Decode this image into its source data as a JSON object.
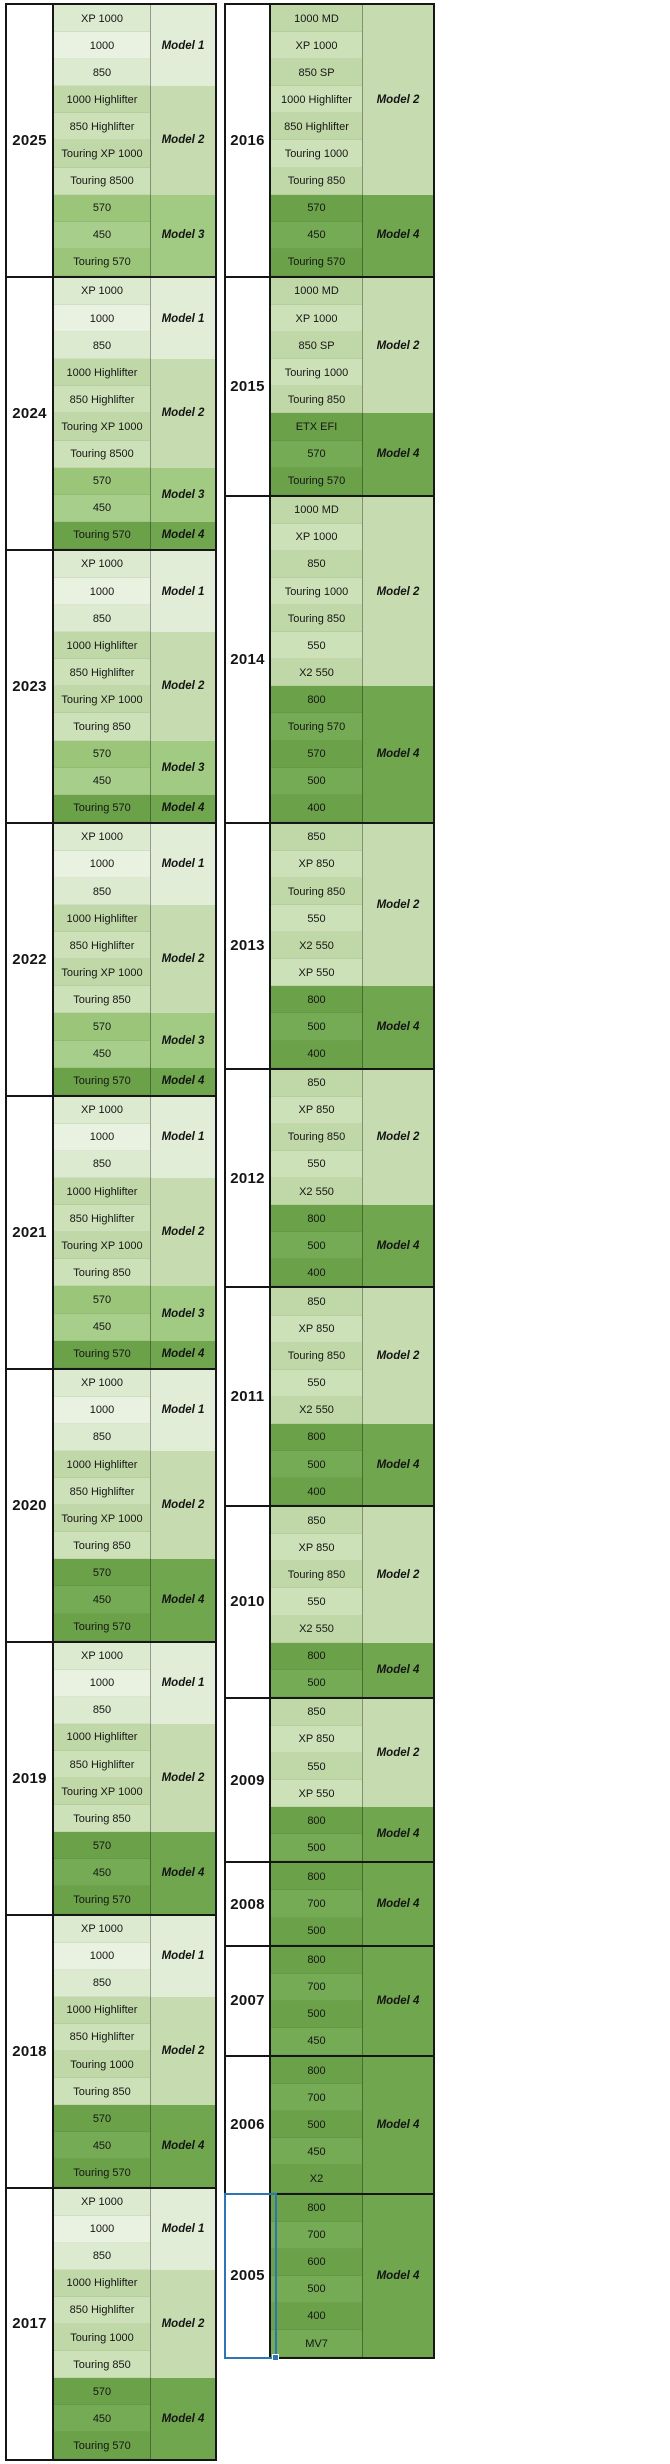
{
  "colors": {
    "border": "#161616",
    "selection": "#2e75b6",
    "year_bg": "#ffffff",
    "text": "#151515",
    "shades": {
      "1": [
        "#dcead0",
        "#e9f1e0"
      ],
      "2": [
        "#c0d8a8",
        "#cde1b9"
      ],
      "3": [
        "#9bc67a",
        "#a8ce8b"
      ],
      "4": [
        "#6ba249",
        "#75ab54"
      ]
    },
    "labels": {
      "1": "#e2edd7",
      "2": "#c6dcb0",
      "3": "#a1ca82",
      "4": "#70a64e"
    }
  },
  "selection": {
    "year": "2005"
  },
  "columns": {
    "left": [
      {
        "year": "2025",
        "groups": [
          {
            "model": "1",
            "label": "Model 1",
            "items": [
              "XP 1000",
              "1000",
              "850"
            ]
          },
          {
            "model": "2",
            "label": "Model 2",
            "items": [
              "1000 Highlifter",
              "850 Highlifter",
              "Touring XP 1000",
              "Touring 8500"
            ]
          },
          {
            "model": "3",
            "label": "Model 3",
            "items": [
              "570",
              "450",
              "Touring 570"
            ]
          }
        ]
      },
      {
        "year": "2024",
        "groups": [
          {
            "model": "1",
            "label": "Model 1",
            "items": [
              "XP 1000",
              "1000",
              "850"
            ]
          },
          {
            "model": "2",
            "label": "Model 2",
            "items": [
              "1000 Highlifter",
              "850 Highlifter",
              "Touring XP 1000",
              "Touring 8500"
            ]
          },
          {
            "model": "3",
            "label": "Model 3",
            "items": [
              "570",
              "450"
            ]
          },
          {
            "model": "4",
            "label": "Model 4",
            "items": [
              "Touring 570"
            ]
          }
        ]
      },
      {
        "year": "2023",
        "groups": [
          {
            "model": "1",
            "label": "Model 1",
            "items": [
              "XP 1000",
              "1000",
              "850"
            ]
          },
          {
            "model": "2",
            "label": "Model 2",
            "items": [
              "1000 Highlifter",
              "850 Highlifter",
              "Touring XP 1000",
              "Touring 850"
            ]
          },
          {
            "model": "3",
            "label": "Model 3",
            "items": [
              "570",
              "450"
            ]
          },
          {
            "model": "4",
            "label": "Model 4",
            "items": [
              "Touring 570"
            ]
          }
        ]
      },
      {
        "year": "2022",
        "groups": [
          {
            "model": "1",
            "label": "Model 1",
            "items": [
              "XP 1000",
              "1000",
              "850"
            ]
          },
          {
            "model": "2",
            "label": "Model 2",
            "items": [
              "1000 Highlifter",
              "850 Highlifter",
              "Touring XP 1000",
              "Touring 850"
            ]
          },
          {
            "model": "3",
            "label": "Model 3",
            "items": [
              "570",
              "450"
            ]
          },
          {
            "model": "4",
            "label": "Model 4",
            "items": [
              "Touring 570"
            ]
          }
        ]
      },
      {
        "year": "2021",
        "groups": [
          {
            "model": "1",
            "label": "Model 1",
            "items": [
              "XP 1000",
              "1000",
              "850"
            ]
          },
          {
            "model": "2",
            "label": "Model 2",
            "items": [
              "1000 Highlifter",
              "850 Highlifter",
              "Touring XP 1000",
              "Touring 850"
            ]
          },
          {
            "model": "3",
            "label": "Model 3",
            "items": [
              "570",
              "450"
            ]
          },
          {
            "model": "4",
            "label": "Model 4",
            "items": [
              "Touring 570"
            ]
          }
        ]
      },
      {
        "year": "2020",
        "groups": [
          {
            "model": "1",
            "label": "Model 1",
            "items": [
              "XP 1000",
              "1000",
              "850"
            ]
          },
          {
            "model": "2",
            "label": "Model 2",
            "items": [
              "1000 Highlifter",
              "850 Highlifter",
              "Touring XP 1000",
              "Touring 850"
            ]
          },
          {
            "model": "4",
            "label": "Model 4",
            "items": [
              "570",
              "450",
              "Touring 570"
            ]
          }
        ]
      },
      {
        "year": "2019",
        "groups": [
          {
            "model": "1",
            "label": "Model 1",
            "items": [
              "XP 1000",
              "1000",
              "850"
            ]
          },
          {
            "model": "2",
            "label": "Model 2",
            "items": [
              "1000 Highlifter",
              "850 Highlifter",
              "Touring XP 1000",
              "Touring 850"
            ]
          },
          {
            "model": "4",
            "label": "Model 4",
            "items": [
              "570",
              "450",
              "Touring 570"
            ]
          }
        ]
      },
      {
        "year": "2018",
        "groups": [
          {
            "model": "1",
            "label": "Model 1",
            "items": [
              "XP 1000",
              "1000",
              "850"
            ]
          },
          {
            "model": "2",
            "label": "Model 2",
            "items": [
              "1000 Highlifter",
              "850 Highlifter",
              "Touring 1000",
              "Touring 850"
            ]
          },
          {
            "model": "4",
            "label": "Model 4",
            "items": [
              "570",
              "450",
              "Touring 570"
            ]
          }
        ]
      },
      {
        "year": "2017",
        "groups": [
          {
            "model": "1",
            "label": "Model 1",
            "items": [
              "XP 1000",
              "1000",
              "850"
            ]
          },
          {
            "model": "2",
            "label": "Model 2",
            "items": [
              "1000 Highlifter",
              "850 Highlifter",
              "Touring 1000",
              "Touring 850"
            ]
          },
          {
            "model": "4",
            "label": "Model 4",
            "items": [
              "570",
              "450",
              "Touring 570"
            ]
          }
        ]
      }
    ],
    "right": [
      {
        "year": "2016",
        "groups": [
          {
            "model": "2",
            "label": "Model 2",
            "items": [
              "1000 MD",
              "XP 1000",
              "850 SP",
              "1000 Highlifter",
              "850 Highlifter",
              "Touring 1000",
              "Touring 850"
            ]
          },
          {
            "model": "4",
            "label": "Model 4",
            "items": [
              "570",
              "450",
              "Touring 570"
            ]
          }
        ]
      },
      {
        "year": "2015",
        "groups": [
          {
            "model": "2",
            "label": "Model 2",
            "items": [
              "1000 MD",
              "XP 1000",
              "850 SP",
              "Touring 1000",
              "Touring 850"
            ]
          },
          {
            "model": "4",
            "label": "Model 4",
            "items": [
              "ETX EFI",
              "570",
              "Touring 570"
            ]
          }
        ]
      },
      {
        "year": "2014",
        "groups": [
          {
            "model": "2",
            "label": "Model 2",
            "items": [
              "1000 MD",
              "XP 1000",
              "850",
              "Touring 1000",
              "Touring 850",
              "550",
              "X2 550"
            ]
          },
          {
            "model": "4",
            "label": "Model 4",
            "items": [
              "800",
              "Touring 570",
              "570",
              "500",
              "400"
            ]
          }
        ]
      },
      {
        "year": "2013",
        "groups": [
          {
            "model": "2",
            "label": "Model 2",
            "items": [
              "850",
              "XP 850",
              "Touring 850",
              "550",
              "X2 550",
              "XP 550"
            ]
          },
          {
            "model": "4",
            "label": "Model 4",
            "items": [
              "800",
              "500",
              "400"
            ]
          }
        ]
      },
      {
        "year": "2012",
        "groups": [
          {
            "model": "2",
            "label": "Model 2",
            "items": [
              "850",
              "XP 850",
              "Touring 850",
              "550",
              "X2 550"
            ]
          },
          {
            "model": "4",
            "label": "Model 4",
            "items": [
              "800",
              "500",
              "400"
            ]
          }
        ]
      },
      {
        "year": "2011",
        "groups": [
          {
            "model": "2",
            "label": "Model 2",
            "items": [
              "850",
              "XP 850",
              "Touring 850",
              "550",
              "X2 550"
            ]
          },
          {
            "model": "4",
            "label": "Model 4",
            "items": [
              "800",
              "500",
              "400"
            ]
          }
        ]
      },
      {
        "year": "2010",
        "groups": [
          {
            "model": "2",
            "label": "Model 2",
            "items": [
              "850",
              "XP 850",
              "Touring 850",
              "550",
              "X2 550"
            ]
          },
          {
            "model": "4",
            "label": "Model 4",
            "items": [
              "800",
              "500"
            ]
          }
        ]
      },
      {
        "year": "2009",
        "groups": [
          {
            "model": "2",
            "label": "Model 2",
            "items": [
              "850",
              "XP 850",
              "550",
              "XP 550"
            ]
          },
          {
            "model": "4",
            "label": "Model 4",
            "items": [
              "800",
              "500"
            ]
          }
        ]
      },
      {
        "year": "2008",
        "groups": [
          {
            "model": "4",
            "label": "Model 4",
            "items": [
              "800",
              "700",
              "500"
            ]
          }
        ]
      },
      {
        "year": "2007",
        "groups": [
          {
            "model": "4",
            "label": "Model 4",
            "items": [
              "800",
              "700",
              "500",
              "450"
            ]
          }
        ]
      },
      {
        "year": "2006",
        "groups": [
          {
            "model": "4",
            "label": "Model 4",
            "items": [
              "800",
              "700",
              "500",
              "450",
              "X2"
            ]
          }
        ]
      },
      {
        "year": "2005",
        "groups": [
          {
            "model": "4",
            "label": "Model 4",
            "items": [
              "800",
              "700",
              "600",
              "500",
              "400",
              "MV7"
            ]
          }
        ]
      }
    ]
  }
}
